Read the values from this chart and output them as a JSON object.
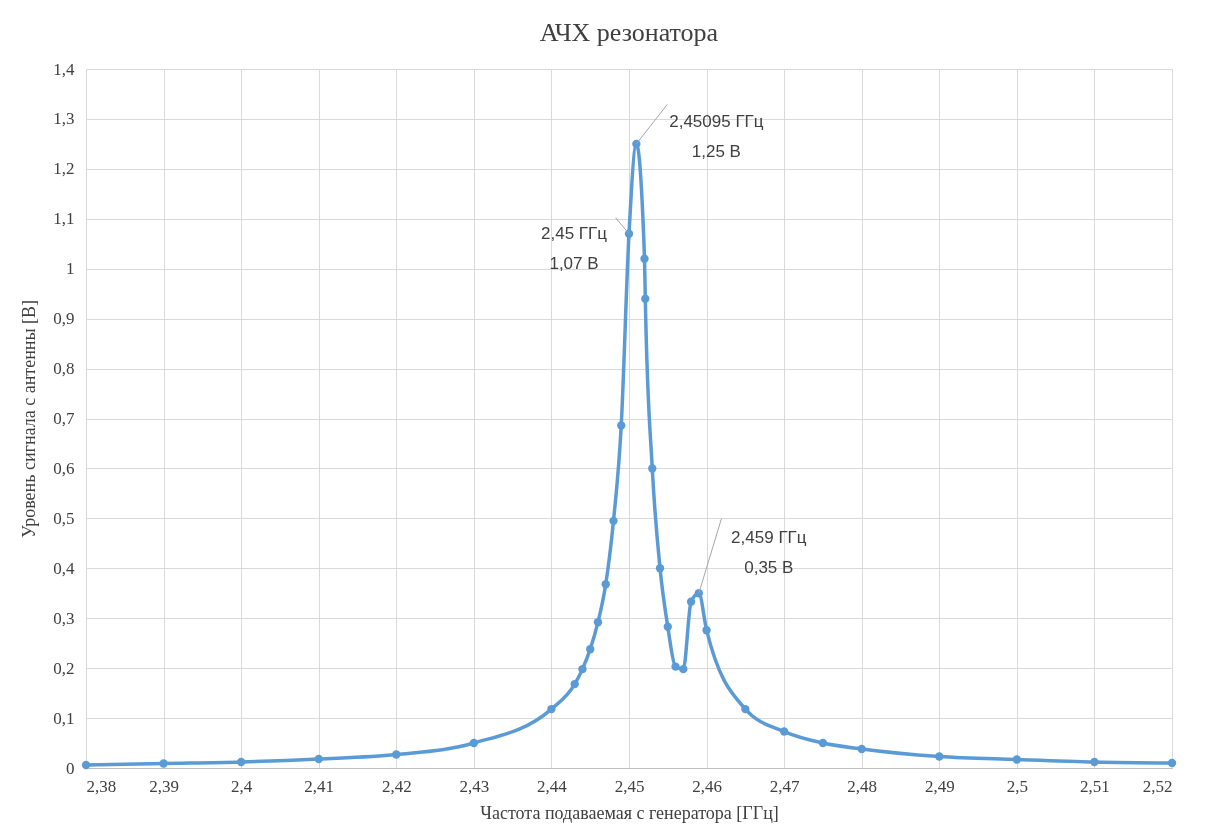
{
  "chart_data": {
    "type": "line",
    "title": "АЧХ резонатора",
    "xlabel": "Частота подаваемая с генератора [ГГц]",
    "ylabel": "Уровень сигнала с антенны [В]",
    "x": [
      2.38,
      2.39,
      2.4,
      2.41,
      2.42,
      2.43,
      2.44,
      2.443,
      2.444,
      2.445,
      2.446,
      2.447,
      2.448,
      2.449,
      2.45,
      2.45095,
      2.452,
      2.4521,
      2.453,
      2.454,
      2.455,
      2.456,
      2.457,
      2.458,
      2.459,
      2.46,
      2.465,
      2.47,
      2.475,
      2.48,
      2.49,
      2.5,
      2.51,
      2.52
    ],
    "series": [
      {
        "color": "#5b9bd5",
        "values": [
          0.006,
          0.009,
          0.012,
          0.018,
          0.027,
          0.05,
          0.118,
          0.168,
          0.198,
          0.238,
          0.292,
          0.368,
          0.495,
          0.686,
          1.07,
          1.25,
          1.02,
          0.94,
          0.6,
          0.4,
          0.283,
          0.203,
          0.198,
          0.333,
          0.35,
          0.276,
          0.118,
          0.073,
          0.05,
          0.038,
          0.023,
          0.017,
          0.012,
          0.01
        ]
      }
    ],
    "xlim": [
      2.38,
      2.52
    ],
    "xticks": [
      {
        "value": 2.38,
        "label": "2,38"
      },
      {
        "value": 2.39,
        "label": "2,39"
      },
      {
        "value": 2.4,
        "label": "2,4"
      },
      {
        "value": 2.41,
        "label": "2,41"
      },
      {
        "value": 2.42,
        "label": "2,42"
      },
      {
        "value": 2.43,
        "label": "2,43"
      },
      {
        "value": 2.44,
        "label": "2,44"
      },
      {
        "value": 2.45,
        "label": "2,45"
      },
      {
        "value": 2.46,
        "label": "2,46"
      },
      {
        "value": 2.47,
        "label": "2,47"
      },
      {
        "value": 2.48,
        "label": "2,48"
      },
      {
        "value": 2.49,
        "label": "2,49"
      },
      {
        "value": 2.5,
        "label": "2,5"
      },
      {
        "value": 2.51,
        "label": "2,51"
      },
      {
        "value": 2.52,
        "label": "2,52"
      }
    ],
    "ylim": [
      0,
      1.4
    ],
    "yticks": [
      0,
      {
        "value": 0.1,
        "label": "0,1"
      },
      {
        "value": 0.2,
        "label": "0,2"
      },
      {
        "value": 0.3,
        "label": "0,3"
      },
      {
        "value": 0.4,
        "label": "0,4"
      },
      {
        "value": 0.5,
        "label": "0,5"
      },
      {
        "value": 0.6,
        "label": "0,6"
      },
      {
        "value": 0.7,
        "label": "0,7"
      },
      {
        "value": 0.8,
        "label": "0,8"
      },
      {
        "value": 0.9,
        "label": "0,9"
      },
      1,
      {
        "value": 1.1,
        "label": "1,1"
      },
      {
        "value": 1.2,
        "label": "1,2"
      },
      {
        "value": 1.3,
        "label": "1,3"
      },
      {
        "value": 1.4,
        "label": "1,4"
      }
    ],
    "grid": true,
    "marker": "circle",
    "line_style": "solid",
    "annotations": [
      {
        "text": "2,45095 ГГц\n1,25 В",
        "x": 2.45095,
        "y": 1.25
      },
      {
        "text": "2,45 ГГц\n1,07 В",
        "x": 2.45,
        "y": 1.07
      },
      {
        "text": "2,459 ГГц\n0,35 В",
        "x": 2.459,
        "y": 0.35
      }
    ]
  }
}
